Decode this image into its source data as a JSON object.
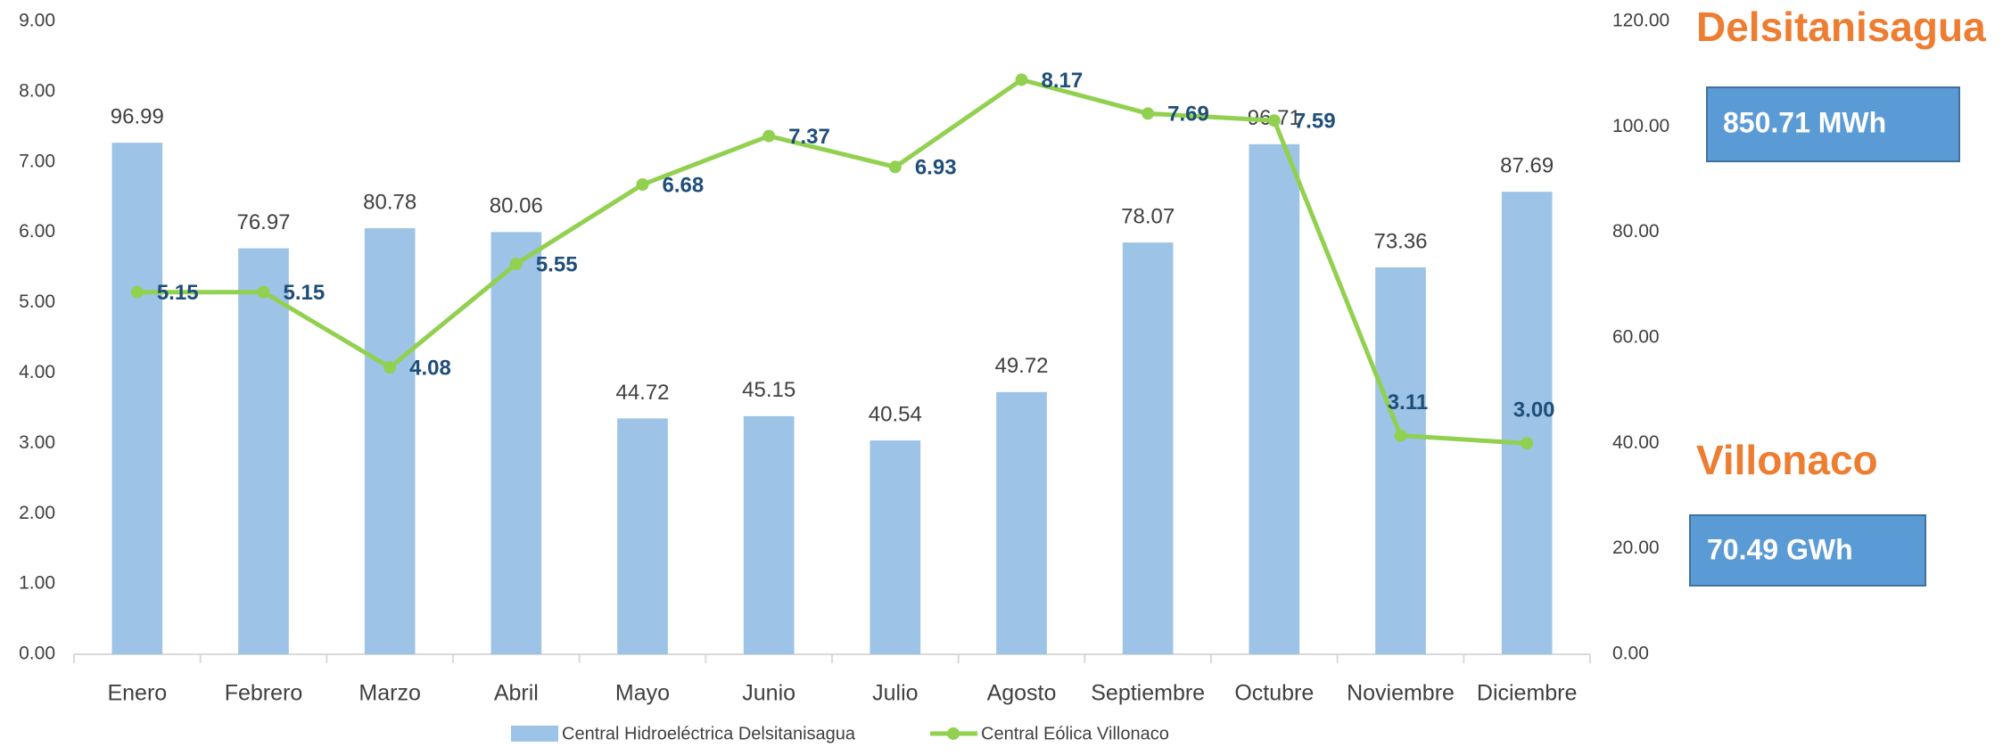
{
  "chart_data": {
    "type": "bar_line",
    "categories": [
      "Enero",
      "Febrero",
      "Marzo",
      "Abril",
      "Mayo",
      "Junio",
      "Julio",
      "Agosto",
      "Septiembre",
      "Octubre",
      "Noviembre",
      "Diciembre"
    ],
    "series": [
      {
        "name": "Central Hidroeléctrica Delsitanisagua",
        "type": "bar",
        "axis": "y2",
        "color": "#9dc3e6",
        "values": [
          96.99,
          76.97,
          80.78,
          80.06,
          44.72,
          45.15,
          40.54,
          49.72,
          78.07,
          96.71,
          73.36,
          87.69
        ]
      },
      {
        "name": "Central Eólica Villonaco",
        "type": "line",
        "axis": "y",
        "color": "#92d050",
        "values": [
          5.15,
          5.15,
          4.08,
          5.55,
          6.68,
          7.37,
          6.93,
          8.17,
          7.69,
          7.59,
          3.11,
          3.0
        ],
        "value_labels": [
          "5.15",
          "5.15",
          "4.08",
          "5.55",
          "6.68",
          "7.37",
          "6.93",
          "8.17",
          "7.69",
          "7.59",
          "3.11",
          "3.00"
        ]
      }
    ],
    "ylim": [
      0,
      9
    ],
    "yticks": [
      {
        "value": 0,
        "label": "0.00"
      },
      {
        "value": 1,
        "label": "1.00"
      },
      {
        "value": 2,
        "label": "2.00"
      },
      {
        "value": 3,
        "label": "3.00"
      },
      {
        "value": 4,
        "label": "4.00"
      },
      {
        "value": 5,
        "label": "5.00"
      },
      {
        "value": 6,
        "label": "6.00"
      },
      {
        "value": 7,
        "label": "7.00"
      },
      {
        "value": 8,
        "label": "8.00"
      },
      {
        "value": 9,
        "label": "9.00"
      }
    ],
    "y2lim": [
      0,
      120
    ],
    "y2ticks": [
      {
        "value": 0,
        "label": "0.00"
      },
      {
        "value": 20,
        "label": "20.00"
      },
      {
        "value": 40,
        "label": "40.00"
      },
      {
        "value": 60,
        "label": "60.00"
      },
      {
        "value": 80,
        "label": "80.00"
      },
      {
        "value": 100,
        "label": "100.00"
      },
      {
        "value": 120,
        "label": "120.00"
      }
    ],
    "legend": "bottom",
    "annotations": [
      "Delsitanisagua",
      "850.71 MWh",
      "Villonaco",
      "70.49 GWh"
    ]
  }
}
